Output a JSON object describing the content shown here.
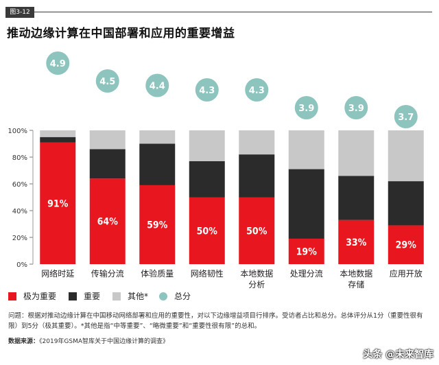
{
  "figure_tag": "图3-12",
  "title": "推动边缘计算在中国部署和应用的重要增益",
  "legend": [
    {
      "label": "极为重要",
      "color": "#e8161e",
      "shape": "square"
    },
    {
      "label": "重要",
      "color": "#2b2b2b",
      "shape": "square"
    },
    {
      "label": "其他*",
      "color": "#c8c8c8",
      "shape": "square"
    },
    {
      "label": "总分",
      "color": "#8ec4be",
      "shape": "circle"
    }
  ],
  "note": "问题：根据对推动边缘计算在中国移动网络部署和应用的重要性，对以下边缘增益项目行排序。受访者占比和总分。总体评分从1分（重要性很有限）到5分（极其重要）。*其他是指“中等重要”、“略微重要”和“重要性很有限”的总和。",
  "source_label": "数据来源：",
  "source_text": "《2019年GSMA智库关于中国边缘计算的调查》",
  "watermark": "头条 @未来智库",
  "chart_data": {
    "type": "bar",
    "stacked": true,
    "categories": [
      "网络时延",
      "传输分流",
      "体验质量",
      "网络韧性",
      "本地数据分析",
      "处理分流",
      "本地数据存储",
      "应用开放"
    ],
    "category_lines": [
      [
        "网络时延"
      ],
      [
        "传输分流"
      ],
      [
        "体验质量"
      ],
      [
        "网络韧性"
      ],
      [
        "本地数据",
        "分析"
      ],
      [
        "处理分流"
      ],
      [
        "本地数据",
        "存储"
      ],
      [
        "应用开放"
      ]
    ],
    "series": [
      {
        "name": "极为重要",
        "color": "#e8161e",
        "values": [
          91,
          64,
          59,
          50,
          50,
          19,
          33,
          29
        ]
      },
      {
        "name": "重要",
        "color": "#2b2b2b",
        "values": [
          4,
          22,
          31,
          27,
          32,
          52,
          33,
          33
        ]
      },
      {
        "name": "其他*",
        "color": "#c8c8c8",
        "values": [
          5,
          14,
          10,
          23,
          18,
          29,
          34,
          38
        ]
      }
    ],
    "data_labels": [
      "91%",
      "64%",
      "59%",
      "50%",
      "50%",
      "19%",
      "33%",
      "29%"
    ],
    "scores": {
      "name": "总分",
      "color": "#8ec4be",
      "labels": [
        "4.9",
        "4.5",
        "4.4",
        "4.3",
        "4.3",
        "3.9",
        "3.9",
        "3.7"
      ],
      "values": [
        4.9,
        4.5,
        4.4,
        4.3,
        4.3,
        3.9,
        3.9,
        3.7
      ]
    },
    "yticks": [
      "0%",
      "20%",
      "40%",
      "60%",
      "80%",
      "100%"
    ],
    "ylim": [
      0,
      100
    ],
    "grid": false,
    "legend_position": "bottom-left"
  }
}
